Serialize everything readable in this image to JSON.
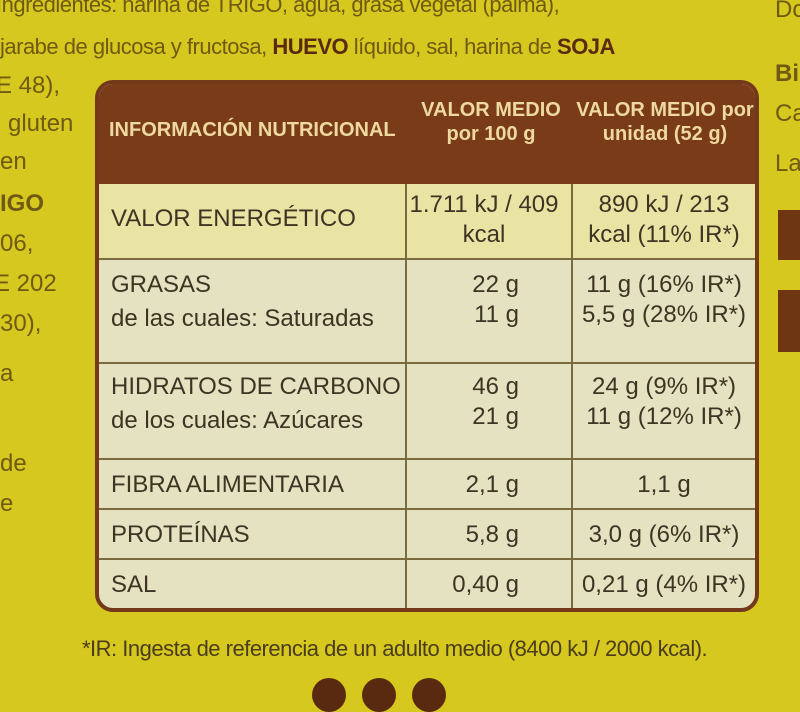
{
  "ingredients": {
    "line1": "Ingredientes: harina de TRIGO, agua, grasa vegetal (palma),",
    "line2_pre": "jarabe de glucosa y fructosa, ",
    "line2_bold1": "HUEVO",
    "line2_mid": " líquido, sal, harina de ",
    "line2_bold2": "SOJA"
  },
  "left_fragments": [
    "E 48),",
    "gluten",
    "en",
    "IGO",
    "06,",
    "E 202",
    "30),",
    "a",
    "de",
    "e"
  ],
  "right_fragments": [
    "Do",
    "Bi",
    "Ca",
    "La"
  ],
  "table": {
    "header": {
      "col1": "INFORMACIÓN NUTRICIONAL",
      "col2": "VALOR MEDIO por 100 g",
      "col3": "VALOR MEDIO por unidad (52 g)"
    },
    "rows": [
      {
        "label": "VALOR ENERGÉTICO",
        "per100": "1.711 kJ / 409 kcal",
        "perUnit": "890 kJ / 213 kcal (11% IR*)"
      },
      {
        "label": "GRASAS",
        "per100": "22 g",
        "perUnit": "11 g (16% IR*)"
      },
      {
        "label": "de las cuales: Saturadas",
        "per100": "11 g",
        "perUnit": "5,5 g (28% IR*)"
      },
      {
        "label": "HIDRATOS DE CARBONO",
        "per100": "46 g",
        "perUnit": "24 g (9% IR*)"
      },
      {
        "label": "de los cuales: Azúcares",
        "per100": "21 g",
        "perUnit": "11 g (12% IR*)"
      },
      {
        "label": "FIBRA ALIMENTARIA",
        "per100": "2,1 g",
        "perUnit": "1,1 g"
      },
      {
        "label": "PROTEÍNAS",
        "per100": "5,8 g",
        "perUnit": "3,0 g (6% IR*)"
      },
      {
        "label": "SAL",
        "per100": "0,40 g",
        "perUnit": "0,21 g (4% IR*)"
      }
    ]
  },
  "footnote": "*IR: Ingesta de referencia de un adulto medio (8400 kJ / 2000 kcal).",
  "colors": {
    "background": "#d6c81e",
    "header": "#7a3c18",
    "table": "#e4e2c0"
  }
}
